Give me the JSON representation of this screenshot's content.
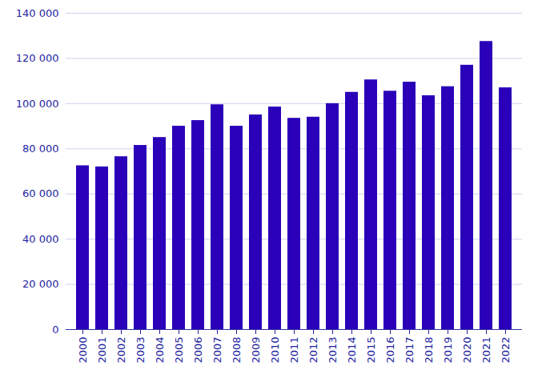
{
  "chart_data": {
    "type": "bar",
    "categories": [
      "2000",
      "2001",
      "2002",
      "2003",
      "2004",
      "2005",
      "2006",
      "2007",
      "2008",
      "2009",
      "2010",
      "2011",
      "2012",
      "2013",
      "2014",
      "2015",
      "2016",
      "2017",
      "2018",
      "2019",
      "2020",
      "2021",
      "2022"
    ],
    "values": [
      72500,
      72000,
      76500,
      81500,
      85000,
      90000,
      92500,
      99500,
      90000,
      95000,
      98500,
      93500,
      94000,
      100000,
      105000,
      110500,
      105500,
      109500,
      103500,
      107500,
      117000,
      127500,
      107000
    ],
    "color": "#2a00b8",
    "ylim": [
      0,
      140000
    ],
    "yticks": [
      0,
      {
        "value": 20000,
        "label": "20 000"
      },
      {
        "value": 40000,
        "label": "40 000"
      },
      {
        "value": 60000,
        "label": "60 000"
      },
      {
        "value": 80000,
        "label": "80 000"
      },
      {
        "value": 100000,
        "label": "100 000"
      },
      {
        "value": 120000,
        "label": "120 000"
      },
      {
        "value": 140000,
        "label": "140 000"
      }
    ],
    "grid": true
  }
}
